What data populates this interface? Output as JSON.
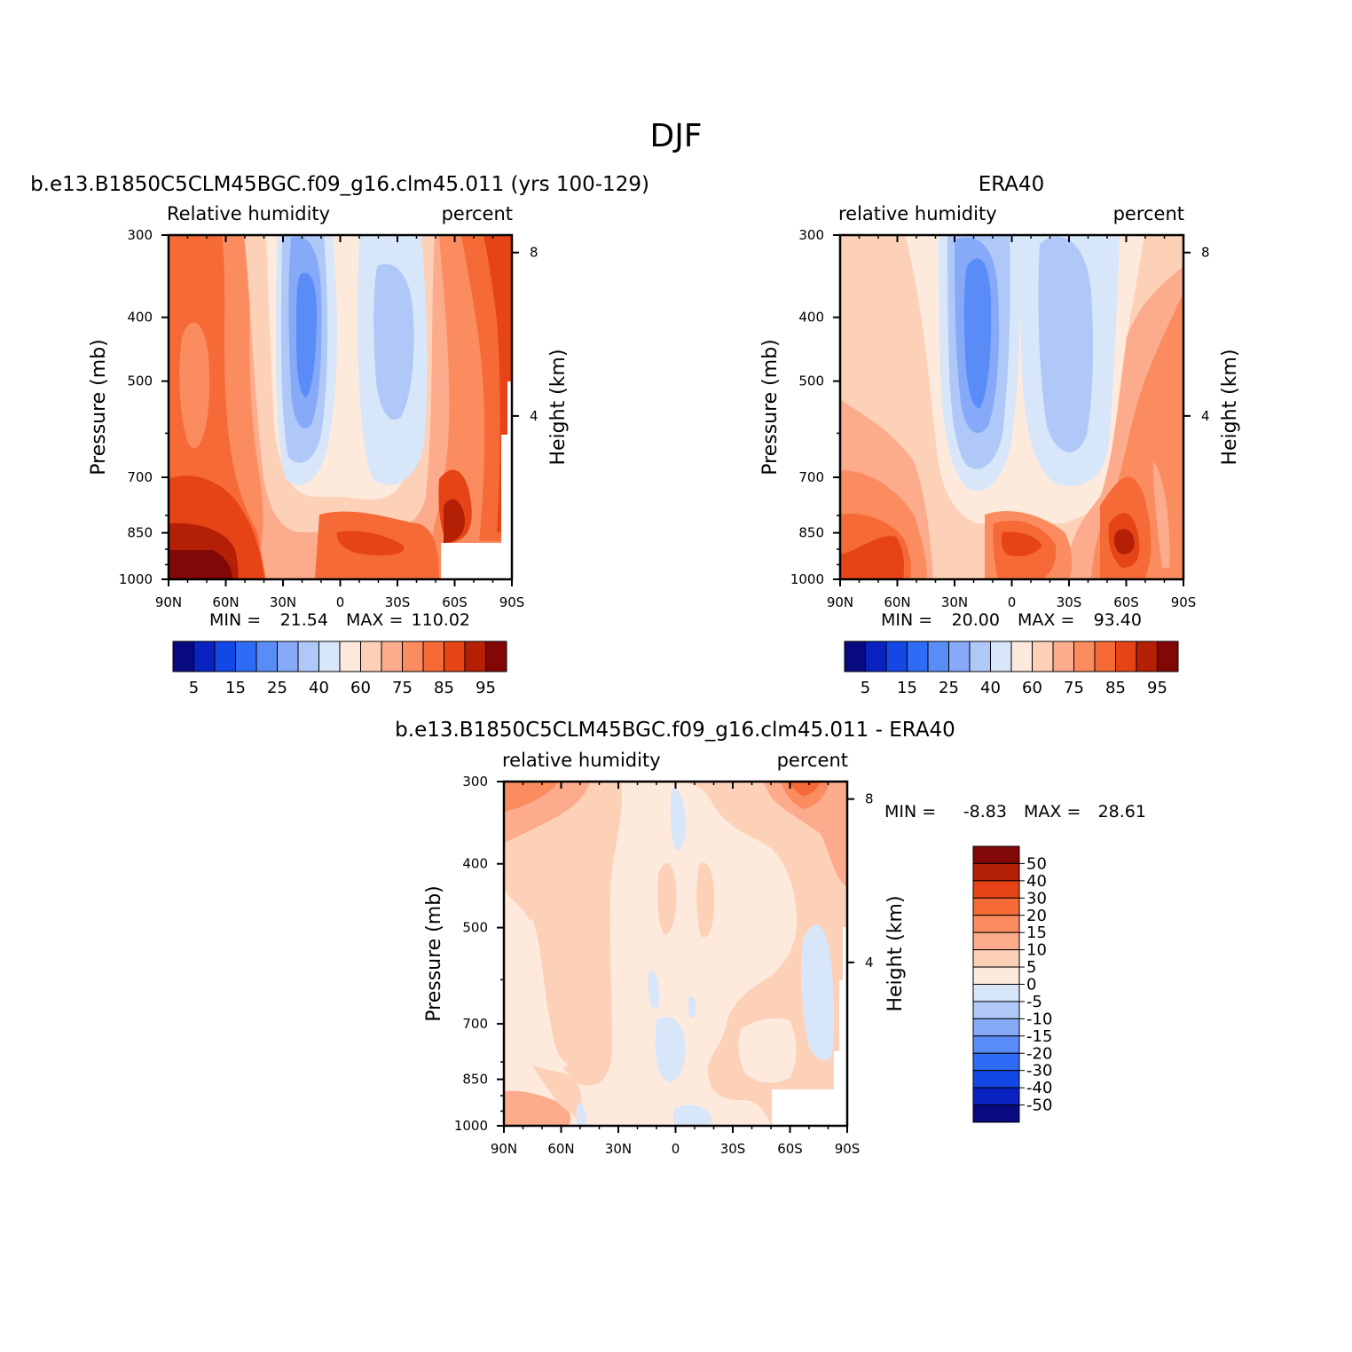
{
  "figure": {
    "main_title": "DJF"
  },
  "chart_data": [
    {
      "id": "model",
      "type": "heatmap",
      "title": "b.e13.B1850C5CLM45BGC.f09_g16.clm45.011 (yrs 100-129)",
      "left_label": "Relative humidity",
      "right_label": "percent",
      "xlabel": "",
      "ylabel": "Pressure (mb)",
      "ylabel_right": "Height (km)",
      "x_ticks": [
        "90N",
        "60N",
        "30N",
        "0",
        "30S",
        "60S",
        "90S"
      ],
      "x_values": [
        90,
        60,
        30,
        0,
        -30,
        -60,
        -90
      ],
      "y_ticks": [
        "300",
        "400",
        "500",
        "700",
        "850",
        "1000"
      ],
      "y_values": [
        300,
        400,
        500,
        700,
        850,
        1000
      ],
      "height_ticks": [
        "8",
        "4"
      ],
      "height_values": [
        8,
        4
      ],
      "min_label": "MIN =",
      "min_value": "21.54",
      "max_label": "MAX =",
      "max_value": "110.02",
      "levels": [
        "5",
        "15",
        "25",
        "40",
        "60",
        "75",
        "85",
        "95"
      ],
      "colorbar_colors": [
        "#0a0a80",
        "#0a22c0",
        "#1448e6",
        "#2e6cf6",
        "#5a8cf8",
        "#86aaf8",
        "#b0c8f8",
        "#d8e6fa",
        "#fdeadc",
        "#fdd0b8",
        "#fcac8c",
        "#fa8c60",
        "#f56a36",
        "#e64416",
        "#b42006",
        "#820808"
      ],
      "colorbar_orientation": "horizontal"
    },
    {
      "id": "obs",
      "type": "heatmap",
      "title": "ERA40",
      "left_label": "relative humidity",
      "right_label": "percent",
      "xlabel": "",
      "ylabel": "Pressure (mb)",
      "ylabel_right": "Height (km)",
      "x_ticks": [
        "90N",
        "60N",
        "30N",
        "0",
        "30S",
        "60S",
        "90S"
      ],
      "x_values": [
        90,
        60,
        30,
        0,
        -30,
        -60,
        -90
      ],
      "y_ticks": [
        "300",
        "400",
        "500",
        "700",
        "850",
        "1000"
      ],
      "y_values": [
        300,
        400,
        500,
        700,
        850,
        1000
      ],
      "height_ticks": [
        "8",
        "4"
      ],
      "height_values": [
        8,
        4
      ],
      "min_label": "MIN =",
      "min_value": "20.00",
      "max_label": "MAX =",
      "max_value": "93.40",
      "levels": [
        "5",
        "15",
        "25",
        "40",
        "60",
        "75",
        "85",
        "95"
      ],
      "colorbar_colors": [
        "#0a0a80",
        "#0a22c0",
        "#1448e6",
        "#2e6cf6",
        "#5a8cf8",
        "#86aaf8",
        "#b0c8f8",
        "#d8e6fa",
        "#fdeadc",
        "#fdd0b8",
        "#fcac8c",
        "#fa8c60",
        "#f56a36",
        "#e64416",
        "#b42006",
        "#820808"
      ],
      "colorbar_orientation": "horizontal"
    },
    {
      "id": "diff",
      "type": "heatmap",
      "title": "b.e13.B1850C5CLM45BGC.f09_g16.clm45.011 - ERA40",
      "left_label": "relative humidity",
      "right_label": "percent",
      "xlabel": "",
      "ylabel": "Pressure (mb)",
      "ylabel_right": "Height (km)",
      "x_ticks": [
        "90N",
        "60N",
        "30N",
        "0",
        "30S",
        "60S",
        "90S"
      ],
      "x_values": [
        90,
        60,
        30,
        0,
        -30,
        -60,
        -90
      ],
      "y_ticks": [
        "300",
        "400",
        "500",
        "700",
        "850",
        "1000"
      ],
      "y_values": [
        300,
        400,
        500,
        700,
        850,
        1000
      ],
      "height_ticks": [
        "8",
        "4"
      ],
      "height_values": [
        8,
        4
      ],
      "min_label": "MIN =",
      "min_value": "-8.83",
      "max_label": "MAX =",
      "max_value": "28.61",
      "levels": [
        "50",
        "40",
        "30",
        "20",
        "15",
        "10",
        "5",
        "0",
        "-5",
        "-10",
        "-15",
        "-20",
        "-30",
        "-40",
        "-50"
      ],
      "colorbar_colors": [
        "#820808",
        "#b42006",
        "#e64416",
        "#f56a36",
        "#fa8c60",
        "#fcac8c",
        "#fdd0b8",
        "#fdeadc",
        "#d8e6fa",
        "#b0c8f8",
        "#86aaf8",
        "#5a8cf8",
        "#2e6cf6",
        "#1448e6",
        "#0a22c0",
        "#0a0a80"
      ],
      "colorbar_orientation": "vertical"
    }
  ]
}
